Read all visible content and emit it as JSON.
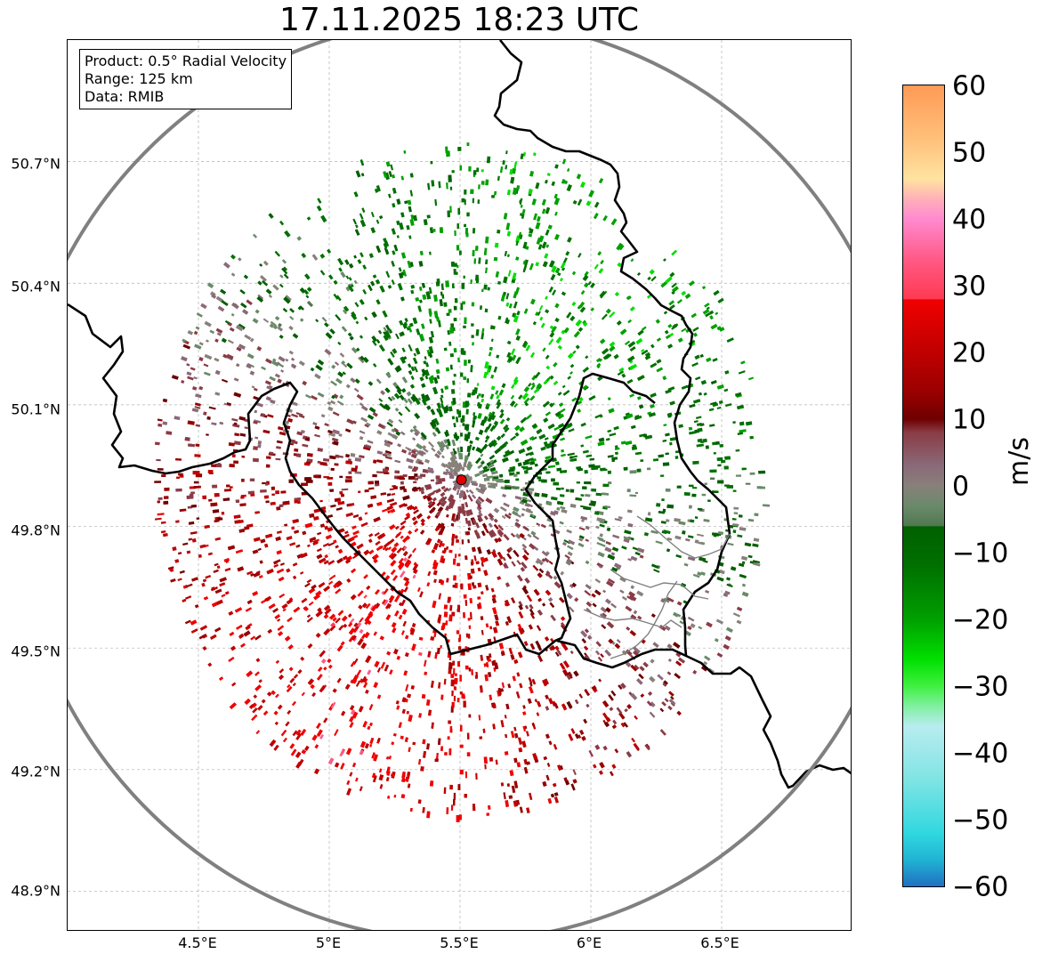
{
  "title": "17.11.2025 18:23 UTC",
  "info": {
    "product": "Product: 0.5° Radial Velocity",
    "range": "Range: 125 km",
    "data": "Data: RMIB"
  },
  "lat_labels": [
    "50.7°N",
    "50.4°N",
    "50.1°N",
    "49.8°N",
    "49.5°N",
    "49.2°N",
    "48.9°N"
  ],
  "lon_labels": [
    "4.5°E",
    "5°E",
    "5.5°E",
    "6°E",
    "6.5°E"
  ],
  "lat_values": [
    50.7,
    50.4,
    50.1,
    49.8,
    49.5,
    49.2,
    48.9
  ],
  "lon_values": [
    4.5,
    5.0,
    5.5,
    6.0,
    6.5
  ],
  "extent": {
    "lon_min": 4.0,
    "lon_max": 7.0,
    "lat_min": 48.8,
    "lat_max": 51.0
  },
  "radar_site": {
    "lon": 5.505,
    "lat": 49.915
  },
  "colorbar": {
    "unit": "m/s",
    "min": -60,
    "max": 60,
    "tick_labels": [
      "60",
      "50",
      "40",
      "30",
      "20",
      "10",
      "0",
      "−10",
      "−20",
      "−30",
      "−40",
      "−50",
      "−60"
    ],
    "stops": [
      {
        "v": 60,
        "c": "#ff9a56"
      },
      {
        "v": 52,
        "c": "#ffc07a"
      },
      {
        "v": 46,
        "c": "#ffe3a0"
      },
      {
        "v": 43,
        "c": "#ffb0b8"
      },
      {
        "v": 40,
        "c": "#ff8ad0"
      },
      {
        "v": 34,
        "c": "#ff5a86"
      },
      {
        "v": 28,
        "c": "#ff3a52"
      },
      {
        "v": 27.9,
        "c": "#f00000"
      },
      {
        "v": 20,
        "c": "#c00000"
      },
      {
        "v": 14,
        "c": "#9a0000"
      },
      {
        "v": 10,
        "c": "#6e0000"
      },
      {
        "v": 8,
        "c": "#8a3c46"
      },
      {
        "v": 3,
        "c": "#8a6a78"
      },
      {
        "v": 0,
        "c": "#88807a"
      },
      {
        "v": -3,
        "c": "#6a8a6a"
      },
      {
        "v": -6,
        "c": "#507850"
      },
      {
        "v": -6.1,
        "c": "#006000"
      },
      {
        "v": -12,
        "c": "#007000"
      },
      {
        "v": -20,
        "c": "#00a000"
      },
      {
        "v": -26,
        "c": "#00e000"
      },
      {
        "v": -30,
        "c": "#40f040"
      },
      {
        "v": -33,
        "c": "#80f0a0"
      },
      {
        "v": -36,
        "c": "#b8ecf0"
      },
      {
        "v": -44,
        "c": "#80e4e4"
      },
      {
        "v": -52,
        "c": "#30d8e0"
      },
      {
        "v": -56,
        "c": "#20b4d4"
      },
      {
        "v": -60,
        "c": "#2070c0"
      }
    ]
  },
  "colors": {
    "range_ring": "#808080",
    "border": "#000000",
    "region": "#808080",
    "gridline": "#b0b0b0",
    "radar_marker": "#e00000",
    "approaching_green": "#00a000",
    "receding_red": "#c00000",
    "near_zero": "#88807a"
  }
}
